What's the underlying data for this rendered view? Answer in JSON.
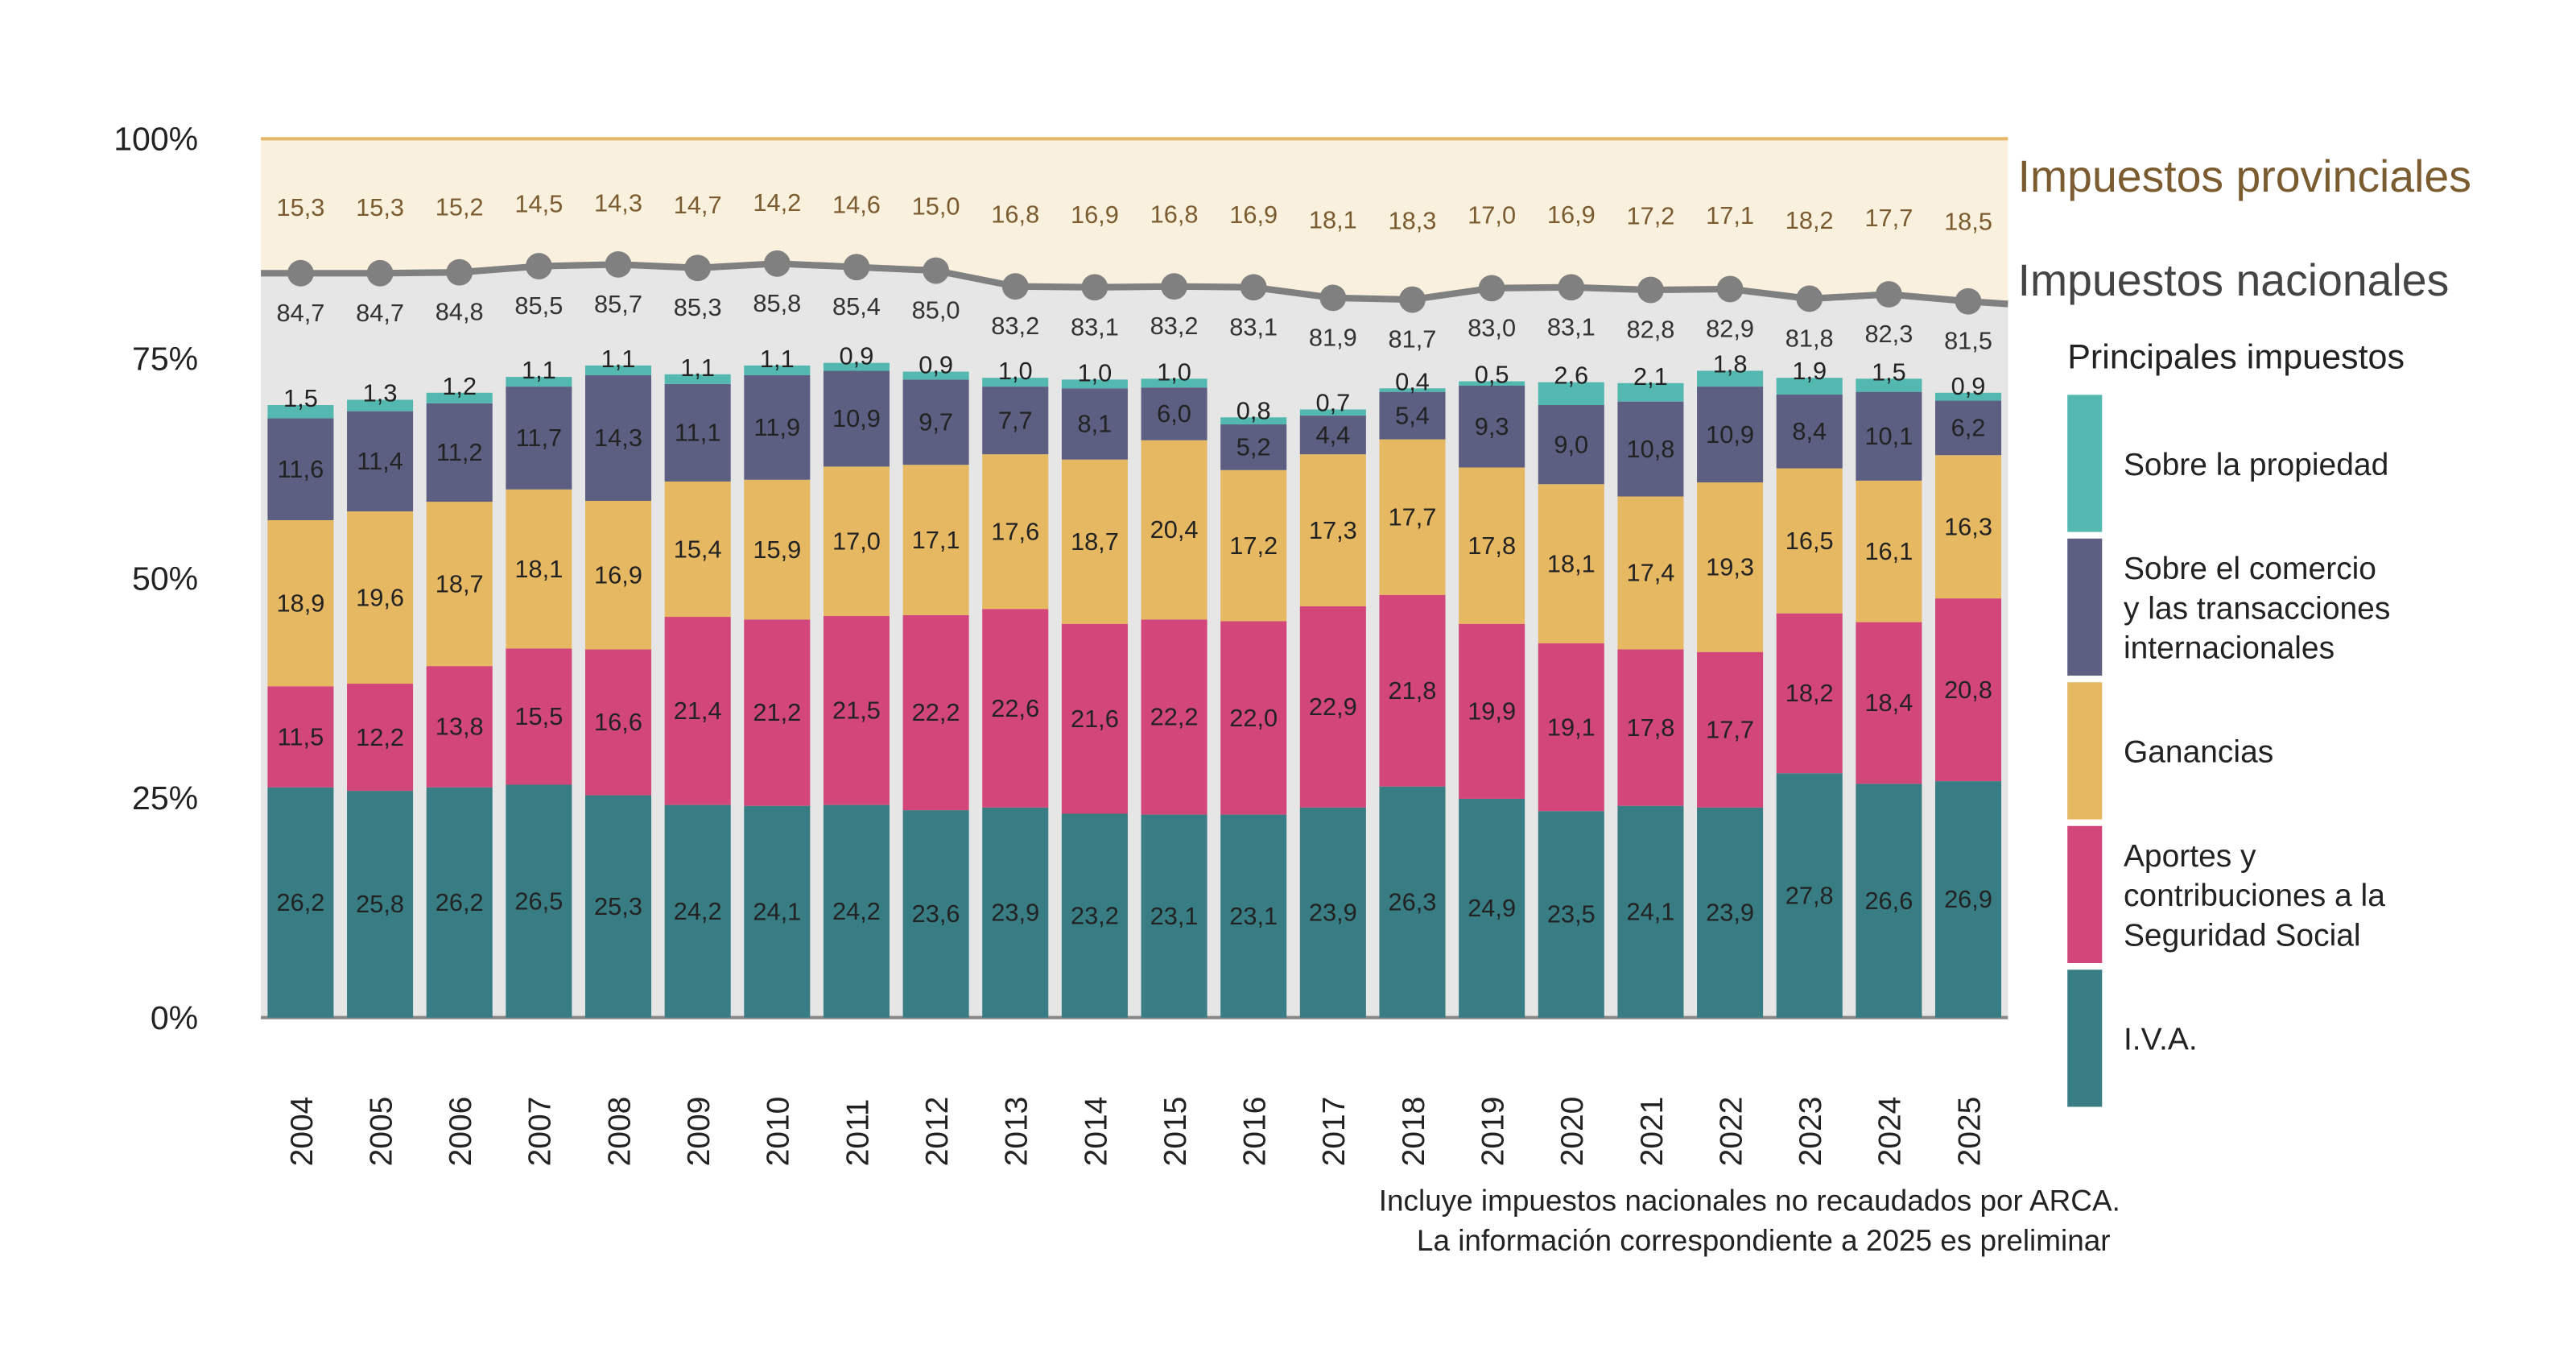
{
  "chart_data": {
    "type": "bar",
    "stacked": true,
    "categories": [
      "2004",
      "2005",
      "2006",
      "2007",
      "2008",
      "2009",
      "2010",
      "2011",
      "2012",
      "2013",
      "2014",
      "2015",
      "2016",
      "2017",
      "2018",
      "2019",
      "2020",
      "2021",
      "2022",
      "2023",
      "2024",
      "2025"
    ],
    "ylim": [
      0,
      100
    ],
    "yticks": [
      "0%",
      "25%",
      "50%",
      "75%",
      "100%"
    ],
    "series": [
      {
        "name": "I.V.A.",
        "color": "#387d84",
        "values": [
          26.2,
          25.8,
          26.2,
          26.5,
          25.3,
          24.2,
          24.1,
          24.2,
          23.6,
          23.9,
          23.2,
          23.1,
          23.1,
          23.9,
          26.3,
          24.9,
          23.5,
          24.1,
          23.9,
          27.8,
          26.6,
          26.9
        ]
      },
      {
        "name": "Aportes y contribuciones a la Seguridad Social",
        "color": "#d2467a",
        "values": [
          11.5,
          12.2,
          13.8,
          15.5,
          16.6,
          21.4,
          21.2,
          21.5,
          22.2,
          22.6,
          21.6,
          22.2,
          22.0,
          22.9,
          21.8,
          19.9,
          19.1,
          17.8,
          17.7,
          18.2,
          18.4,
          20.8
        ]
      },
      {
        "name": "Ganancias",
        "color": "#e6b862",
        "values": [
          18.9,
          19.6,
          18.7,
          18.1,
          16.9,
          15.4,
          15.9,
          17.0,
          17.1,
          17.6,
          18.7,
          20.4,
          17.2,
          17.3,
          17.7,
          17.8,
          18.1,
          17.4,
          19.3,
          16.5,
          16.1,
          16.3
        ]
      },
      {
        "name": "Sobre el comercio y las transacciones internacionales",
        "color": "#5c5f82",
        "values": [
          11.6,
          11.4,
          11.2,
          11.7,
          14.3,
          11.1,
          11.9,
          10.9,
          9.7,
          7.7,
          8.1,
          6.0,
          5.2,
          4.4,
          5.4,
          9.3,
          9.0,
          10.8,
          10.9,
          8.4,
          10.1,
          6.2
        ]
      },
      {
        "name": "Sobre la propiedad",
        "color": "#52b8b0",
        "values": [
          1.5,
          1.3,
          1.2,
          1.1,
          1.1,
          1.1,
          1.1,
          0.9,
          0.9,
          1.0,
          1.0,
          1.0,
          0.8,
          0.7,
          0.4,
          0.5,
          2.6,
          2.1,
          1.8,
          1.9,
          1.5,
          0.9
        ]
      }
    ],
    "area_series": [
      {
        "name": "Impuestos nacionales",
        "color": "#e6e6e6",
        "line_color": "#808080",
        "values": [
          84.7,
          84.7,
          84.8,
          85.5,
          85.7,
          85.3,
          85.8,
          85.4,
          85.0,
          83.2,
          83.1,
          83.2,
          83.1,
          81.9,
          81.7,
          83.0,
          83.1,
          82.8,
          82.9,
          81.8,
          82.3,
          81.5
        ]
      },
      {
        "name": "Impuestos provinciales",
        "color": "#faf0de",
        "label_color": "#7a5c30",
        "values": [
          15.3,
          15.3,
          15.2,
          14.5,
          14.3,
          14.7,
          14.2,
          14.6,
          15.0,
          16.8,
          16.9,
          16.8,
          16.9,
          18.1,
          18.3,
          17.0,
          16.9,
          17.2,
          17.1,
          18.2,
          17.7,
          18.5
        ]
      }
    ],
    "legend_title": "Principales impuestos",
    "legend_position": "right",
    "legend": [
      {
        "lines": [
          "Sobre la propiedad"
        ],
        "color": "#52b8b0"
      },
      {
        "lines": [
          "Sobre el comercio",
          " y las transacciones",
          " internacionales"
        ],
        "color": "#5c5f82"
      },
      {
        "lines": [
          "Ganancias"
        ],
        "color": "#e6b862"
      },
      {
        "lines": [
          "Aportes y",
          " contribuciones a la",
          " Seguridad Social"
        ],
        "color": "#d2467a"
      },
      {
        "lines": [
          "I.V.A."
        ],
        "color": "#387d84"
      }
    ],
    "notes": [
      "Incluye impuestos nacionales no recaudados por ARCA.",
      "La información correspondiente a 2025 es preliminar"
    ],
    "decimal_separator": ","
  }
}
